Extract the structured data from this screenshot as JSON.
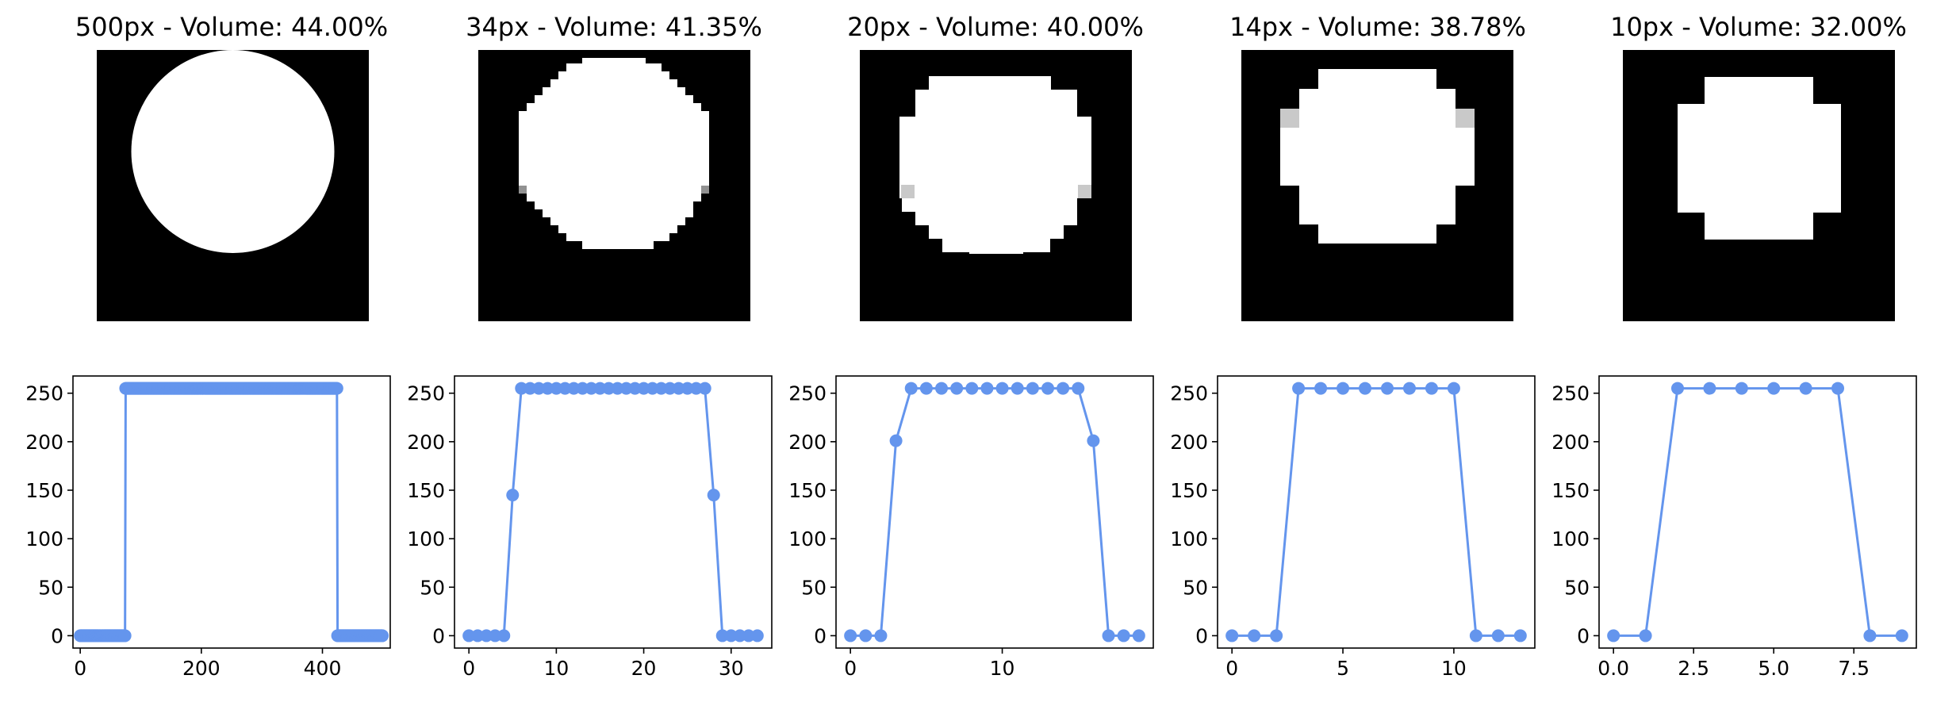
{
  "chart_data": [
    {
      "type": "image",
      "title": "500px - Volume: 44.00%",
      "resolution": 500,
      "volume_percent": 44.0
    },
    {
      "type": "image",
      "title": "34px - Volume: 41.35%",
      "resolution": 34,
      "volume_percent": 41.35
    },
    {
      "type": "image",
      "title": "20px - Volume: 40.00%",
      "resolution": 20,
      "volume_percent": 40.0
    },
    {
      "type": "image",
      "title": "14px - Volume: 38.78%",
      "resolution": 14,
      "volume_percent": 38.78
    },
    {
      "type": "image",
      "title": "10px - Volume: 32.00%",
      "resolution": 10,
      "volume_percent": 32.0
    },
    {
      "type": "line",
      "marker": "circle",
      "color": "#6495ed",
      "xlim": [
        -12,
        512
      ],
      "ylim": [
        -12.75,
        267.75
      ],
      "xticks": [
        0,
        200,
        400
      ],
      "xtick_labels": [
        "0",
        "200",
        "400"
      ],
      "yticks": [
        0,
        50,
        100,
        150,
        200,
        250
      ],
      "ytick_labels": [
        "0",
        "50",
        "100",
        "150",
        "200",
        "250"
      ],
      "series": [
        {
          "x_start": 0,
          "x_step": 1,
          "segments": [
            {
              "count": 75,
              "value": 0
            },
            {
              "count": 350,
              "value": 255
            },
            {
              "count": 75,
              "value": 0
            }
          ]
        }
      ]
    },
    {
      "type": "line",
      "marker": "circle",
      "color": "#6495ed",
      "xlim": [
        -1.65,
        34.65
      ],
      "ylim": [
        -12.75,
        267.75
      ],
      "xticks": [
        0,
        10,
        20,
        30
      ],
      "xtick_labels": [
        "0",
        "10",
        "20",
        "30"
      ],
      "yticks": [
        0,
        50,
        100,
        150,
        200,
        250
      ],
      "ytick_labels": [
        "0",
        "50",
        "100",
        "150",
        "200",
        "250"
      ],
      "series": [
        {
          "x": [
            0,
            1,
            2,
            3,
            4,
            5,
            6,
            7,
            8,
            9,
            10,
            11,
            12,
            13,
            14,
            15,
            16,
            17,
            18,
            19,
            20,
            21,
            22,
            23,
            24,
            25,
            26,
            27,
            28,
            29,
            30,
            31,
            32,
            33
          ],
          "values": [
            0,
            0,
            0,
            0,
            0,
            145,
            255,
            255,
            255,
            255,
            255,
            255,
            255,
            255,
            255,
            255,
            255,
            255,
            255,
            255,
            255,
            255,
            255,
            255,
            255,
            255,
            255,
            255,
            145,
            0,
            0,
            0,
            0,
            0
          ]
        }
      ]
    },
    {
      "type": "line",
      "marker": "circle",
      "color": "#6495ed",
      "xlim": [
        -0.95,
        19.95
      ],
      "ylim": [
        -12.75,
        267.75
      ],
      "xticks": [
        0,
        10
      ],
      "xtick_labels": [
        "0",
        "10"
      ],
      "yticks": [
        0,
        50,
        100,
        150,
        200,
        250
      ],
      "ytick_labels": [
        "0",
        "50",
        "100",
        "150",
        "200",
        "250"
      ],
      "series": [
        {
          "x": [
            0,
            1,
            2,
            3,
            4,
            5,
            6,
            7,
            8,
            9,
            10,
            11,
            12,
            13,
            14,
            15,
            16,
            17,
            18,
            19
          ],
          "values": [
            0,
            0,
            0,
            201,
            255,
            255,
            255,
            255,
            255,
            255,
            255,
            255,
            255,
            255,
            255,
            255,
            201,
            0,
            0,
            0
          ]
        }
      ]
    },
    {
      "type": "line",
      "marker": "circle",
      "color": "#6495ed",
      "xlim": [
        -0.65,
        13.65
      ],
      "ylim": [
        -12.75,
        267.75
      ],
      "xticks": [
        0,
        5,
        10
      ],
      "xtick_labels": [
        "0",
        "5",
        "10"
      ],
      "yticks": [
        0,
        50,
        100,
        150,
        200,
        250
      ],
      "ytick_labels": [
        "0",
        "50",
        "100",
        "150",
        "200",
        "250"
      ],
      "series": [
        {
          "x": [
            0,
            1,
            2,
            3,
            4,
            5,
            6,
            7,
            8,
            9,
            10,
            11,
            12,
            13
          ],
          "values": [
            0,
            0,
            0,
            255,
            255,
            255,
            255,
            255,
            255,
            255,
            255,
            0,
            0,
            0
          ]
        }
      ]
    },
    {
      "type": "line",
      "marker": "circle",
      "color": "#6495ed",
      "xlim": [
        -0.45,
        9.45
      ],
      "ylim": [
        -12.75,
        267.75
      ],
      "xticks": [
        0,
        2.5,
        5,
        7.5
      ],
      "xtick_labels": [
        "0.0",
        "2.5",
        "5.0",
        "7.5"
      ],
      "yticks": [
        0,
        50,
        100,
        150,
        200,
        250
      ],
      "ytick_labels": [
        "0",
        "50",
        "100",
        "150",
        "200",
        "250"
      ],
      "series": [
        {
          "x": [
            0,
            1,
            2,
            3,
            4,
            5,
            6,
            7,
            8,
            9
          ],
          "values": [
            0,
            0,
            255,
            255,
            255,
            255,
            255,
            255,
            0,
            0
          ]
        }
      ]
    }
  ]
}
